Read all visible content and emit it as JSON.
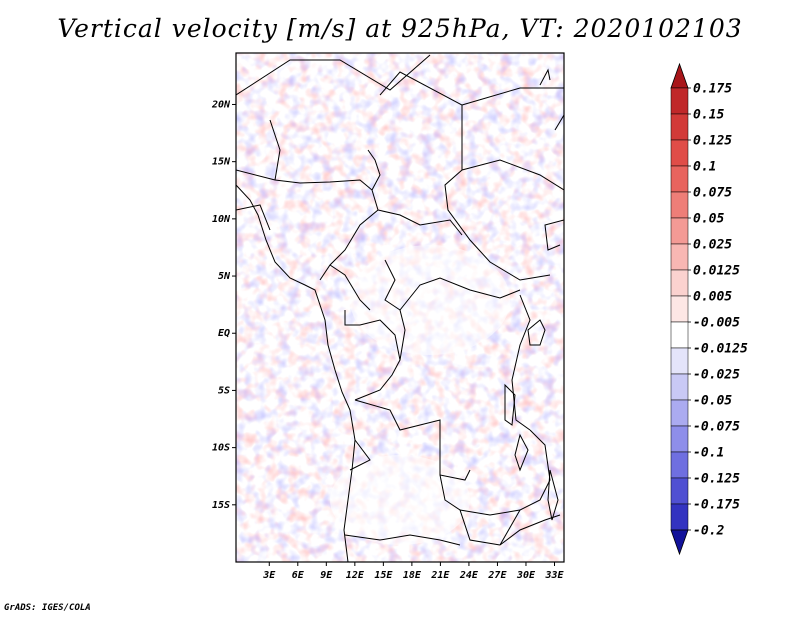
{
  "title": "Vertical velocity [m/s] at 925hPa, VT: 2020102103",
  "footer": "GrADS: IGES/COLA",
  "map": {
    "lon_range": [
      -0.5,
      34.0
    ],
    "lat_range": [
      -20.0,
      24.5
    ],
    "x_ticks": [
      {
        "value": 3,
        "label": "3E"
      },
      {
        "value": 6,
        "label": "6E"
      },
      {
        "value": 9,
        "label": "9E"
      },
      {
        "value": 12,
        "label": "12E"
      },
      {
        "value": 15,
        "label": "15E"
      },
      {
        "value": 18,
        "label": "18E"
      },
      {
        "value": 21,
        "label": "21E"
      },
      {
        "value": 24,
        "label": "24E"
      },
      {
        "value": 27,
        "label": "27E"
      },
      {
        "value": 30,
        "label": "30E"
      },
      {
        "value": 33,
        "label": "33E"
      }
    ],
    "y_ticks": [
      {
        "value": 20,
        "label": "20N"
      },
      {
        "value": 15,
        "label": "15N"
      },
      {
        "value": 10,
        "label": "10N"
      },
      {
        "value": 5,
        "label": "5N"
      },
      {
        "value": 0,
        "label": "EQ"
      },
      {
        "value": -5,
        "label": "5S"
      },
      {
        "value": -10,
        "label": "10S"
      },
      {
        "value": -15,
        "label": "15S"
      }
    ]
  },
  "colorbar": {
    "levels": [
      {
        "label": "0.175",
        "color": "#c0282a"
      },
      {
        "label": "0.15",
        "color": "#d23a38"
      },
      {
        "label": "0.125",
        "color": "#e04d48"
      },
      {
        "label": "0.1",
        "color": "#e8645e"
      },
      {
        "label": "0.075",
        "color": "#ee7e78"
      },
      {
        "label": "0.05",
        "color": "#f39a95"
      },
      {
        "label": "0.025",
        "color": "#f8b7b3"
      },
      {
        "label": "0.0125",
        "color": "#fbd2cf"
      },
      {
        "label": "0.005",
        "color": "#fde7e5"
      },
      {
        "label": "-0.005",
        "color": "#ffffff"
      },
      {
        "label": "-0.0125",
        "color": "#e4e4fa"
      },
      {
        "label": "-0.025",
        "color": "#c9c9f5"
      },
      {
        "label": "-0.05",
        "color": "#ababf0"
      },
      {
        "label": "-0.075",
        "color": "#8e8eea"
      },
      {
        "label": "-0.1",
        "color": "#6f6fe0"
      },
      {
        "label": "-0.125",
        "color": "#5050d2"
      },
      {
        "label": "-0.175",
        "color": "#3333c0"
      },
      {
        "label": "-0.2",
        "color": "#1c1ca8"
      }
    ],
    "top_color": "#a8161a",
    "bottom_color": "#12129a"
  }
}
